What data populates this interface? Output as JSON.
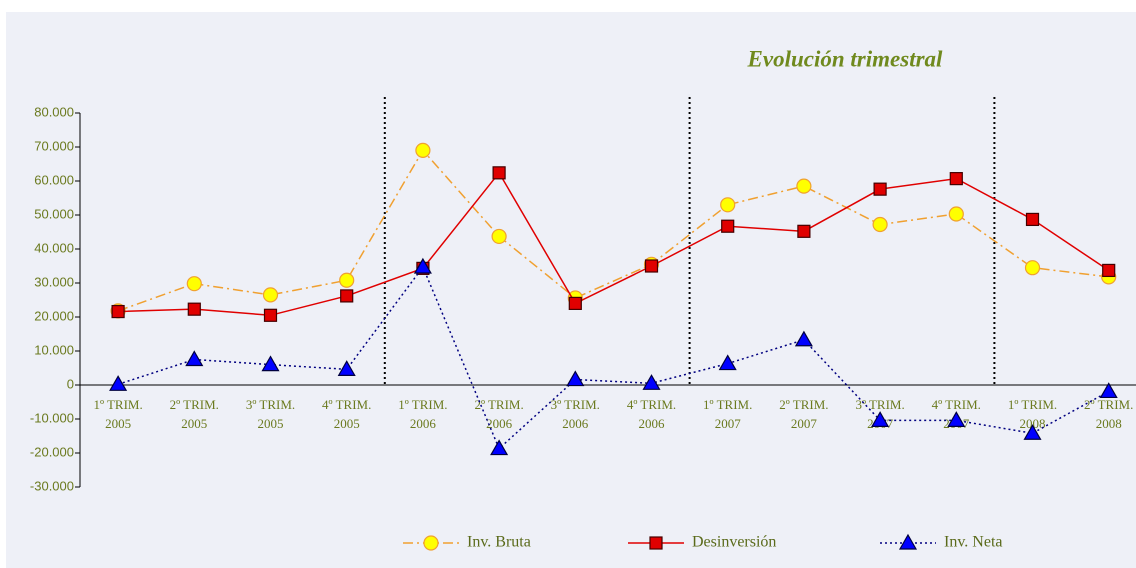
{
  "chart_data": {
    "type": "line",
    "title": "Evolución trimestral",
    "categories": [
      [
        "1º TRIM.",
        "2005"
      ],
      [
        "2º TRIM.",
        "2005"
      ],
      [
        "3º TRIM.",
        "2005"
      ],
      [
        "4º TRIM.",
        "2005"
      ],
      [
        "1º TRIM.",
        "2006"
      ],
      [
        "2º TRIM.",
        "2006"
      ],
      [
        "3º TRIM.",
        "2006"
      ],
      [
        "4º TRIM.",
        "2006"
      ],
      [
        "1º TRIM.",
        "2007"
      ],
      [
        "2º TRIM.",
        "2007"
      ],
      [
        "3º TRIM.",
        "2007"
      ],
      [
        "4º TRIM.",
        "2007"
      ],
      [
        "1º TRIM.",
        "2008"
      ],
      [
        "2º TRIM.",
        "2008"
      ]
    ],
    "series": [
      {
        "name": "Inv. Bruta",
        "color": "#f0a030",
        "marker_fill": "#ffff00",
        "marker": "circle",
        "dash": "10 4 2 4",
        "values": [
          21800,
          29800,
          26500,
          30800,
          69000,
          43700,
          25600,
          35500,
          53000,
          58500,
          47200,
          50300,
          34500,
          31800
        ]
      },
      {
        "name": "Desinversión",
        "color": "#e00000",
        "marker_fill": "#e00000",
        "marker": "square",
        "dash": "",
        "values": [
          21600,
          22300,
          20500,
          26200,
          34300,
          62400,
          24000,
          35000,
          46700,
          45200,
          57600,
          60700,
          48700,
          33700
        ]
      },
      {
        "name": "Inv. Neta",
        "color": "#000080",
        "marker_fill": "#0000ff",
        "marker": "triangle",
        "dash": "2 3",
        "values": [
          200,
          7500,
          6000,
          4600,
          34700,
          -18700,
          1600,
          500,
          6300,
          13300,
          -10400,
          -10400,
          -14200,
          -1900
        ]
      }
    ],
    "ylim": [
      -30000,
      80000
    ],
    "yticks": [
      {
        "value": -30000,
        "label": "-30.000"
      },
      {
        "value": -20000,
        "label": "-20.000"
      },
      {
        "value": -10000,
        "label": "-10.000"
      },
      0,
      {
        "value": 10000,
        "label": "10.000"
      },
      {
        "value": 20000,
        "label": "20.000"
      },
      {
        "value": 30000,
        "label": "30.000"
      },
      {
        "value": 40000,
        "label": "40.000"
      },
      {
        "value": 50000,
        "label": "50.000"
      },
      {
        "value": 60000,
        "label": "60.000"
      },
      {
        "value": 70000,
        "label": "70.000"
      },
      {
        "value": 80000,
        "label": "80.000"
      }
    ],
    "grid": false,
    "legend": "bottom"
  }
}
